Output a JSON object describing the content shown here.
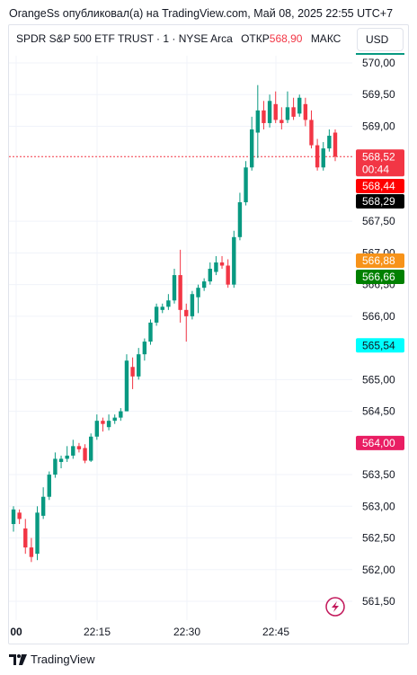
{
  "header": {
    "attribution": "OrangeSs опубликовал(а) на TradingView.com, Май 08, 2025 22:55 UTC+7"
  },
  "legend": {
    "symbol_text": "SPDR S&P 500 ETF TRUST · 1 · NYSE Arca",
    "open_label": "ОТКР",
    "open_value": "568,90",
    "high_label": "МАКС"
  },
  "currency_button": {
    "label": "USD"
  },
  "footer": {
    "brand": "TradingView"
  },
  "colors": {
    "up": "#089981",
    "down": "#f23645",
    "grid": "#f0f3fa",
    "last_price_line": "#f23645"
  },
  "price_labels": [
    {
      "id": "last-price",
      "value": "568,52",
      "sub": "00:44",
      "color": "#f23645",
      "text_color": "#ffffff"
    },
    {
      "id": "bid-price",
      "value": "568,44",
      "color": "#ff0000",
      "text_color": "#ffffff"
    },
    {
      "id": "ask-price",
      "value": "568,29",
      "color": "#000000",
      "text_color": "#ffffff"
    },
    {
      "id": "orange-level",
      "value": "566,88",
      "color": "#f7931a",
      "text_color": "#ffffff"
    },
    {
      "id": "green-level",
      "value": "566,66",
      "color": "#008000",
      "text_color": "#ffffff"
    },
    {
      "id": "cyan-level",
      "value": "565,54",
      "color": "#00ffff",
      "text_color": "#131722"
    },
    {
      "id": "pink-level",
      "value": "564,00",
      "color": "#e91e63",
      "text_color": "#ffffff"
    }
  ],
  "chart_data": {
    "type": "candlestick",
    "ylim": [
      561.3,
      570.15
    ],
    "y_ticks": [
      "570,00",
      "569,50",
      "569,00",
      "567,50",
      "567,00",
      "566,50",
      "566,00",
      "565,00",
      "564,50",
      "563,50",
      "563,00",
      "562,50",
      "562,00",
      "561,50"
    ],
    "x_ticks": [
      "00",
      "22:15",
      "22:30",
      "22:45"
    ],
    "last_price": 568.52,
    "candles": [
      {
        "o": 562.72,
        "h": 563.0,
        "l": 562.6,
        "c": 562.95
      },
      {
        "o": 562.9,
        "h": 562.95,
        "l": 562.72,
        "c": 562.8
      },
      {
        "o": 562.65,
        "h": 562.8,
        "l": 562.25,
        "c": 562.35
      },
      {
        "o": 562.35,
        "h": 562.5,
        "l": 562.12,
        "c": 562.2
      },
      {
        "o": 562.25,
        "h": 563.0,
        "l": 562.15,
        "c": 562.9
      },
      {
        "o": 562.85,
        "h": 563.3,
        "l": 562.8,
        "c": 563.15
      },
      {
        "o": 563.15,
        "h": 563.55,
        "l": 563.1,
        "c": 563.5
      },
      {
        "o": 563.5,
        "h": 563.85,
        "l": 563.45,
        "c": 563.75
      },
      {
        "o": 563.7,
        "h": 563.8,
        "l": 563.6,
        "c": 563.75
      },
      {
        "o": 563.75,
        "h": 563.95,
        "l": 563.7,
        "c": 563.8
      },
      {
        "o": 563.8,
        "h": 564.05,
        "l": 563.75,
        "c": 563.95
      },
      {
        "o": 563.95,
        "h": 564.0,
        "l": 563.85,
        "c": 563.9
      },
      {
        "o": 563.92,
        "h": 563.98,
        "l": 563.68,
        "c": 563.72
      },
      {
        "o": 563.72,
        "h": 564.15,
        "l": 563.7,
        "c": 564.1
      },
      {
        "o": 564.1,
        "h": 564.45,
        "l": 564.05,
        "c": 564.35
      },
      {
        "o": 564.35,
        "h": 564.4,
        "l": 564.18,
        "c": 564.3
      },
      {
        "o": 564.25,
        "h": 564.45,
        "l": 564.2,
        "c": 564.35
      },
      {
        "o": 564.35,
        "h": 564.45,
        "l": 564.3,
        "c": 564.4
      },
      {
        "o": 564.4,
        "h": 564.55,
        "l": 564.35,
        "c": 564.5
      },
      {
        "o": 564.5,
        "h": 565.4,
        "l": 564.5,
        "c": 565.3
      },
      {
        "o": 565.2,
        "h": 565.35,
        "l": 564.85,
        "c": 565.05
      },
      {
        "o": 565.05,
        "h": 565.5,
        "l": 565.0,
        "c": 565.4
      },
      {
        "o": 565.4,
        "h": 565.65,
        "l": 565.3,
        "c": 565.6
      },
      {
        "o": 565.6,
        "h": 565.95,
        "l": 565.55,
        "c": 565.9
      },
      {
        "o": 565.9,
        "h": 566.2,
        "l": 565.85,
        "c": 566.15
      },
      {
        "o": 566.1,
        "h": 566.2,
        "l": 566.05,
        "c": 566.15
      },
      {
        "o": 566.15,
        "h": 566.35,
        "l": 566.1,
        "c": 566.25
      },
      {
        "o": 566.25,
        "h": 566.75,
        "l": 566.2,
        "c": 566.65
      },
      {
        "o": 566.65,
        "h": 567.05,
        "l": 565.9,
        "c": 566.1
      },
      {
        "o": 566.1,
        "h": 566.2,
        "l": 565.6,
        "c": 566.0
      },
      {
        "o": 566.0,
        "h": 566.4,
        "l": 565.95,
        "c": 566.35
      },
      {
        "o": 566.3,
        "h": 566.5,
        "l": 566.05,
        "c": 566.45
      },
      {
        "o": 566.45,
        "h": 566.6,
        "l": 566.4,
        "c": 566.55
      },
      {
        "o": 566.55,
        "h": 566.85,
        "l": 566.5,
        "c": 566.75
      },
      {
        "o": 566.7,
        "h": 566.95,
        "l": 566.65,
        "c": 566.85
      },
      {
        "o": 566.85,
        "h": 566.95,
        "l": 566.75,
        "c": 566.8
      },
      {
        "o": 566.8,
        "h": 566.9,
        "l": 566.45,
        "c": 566.5
      },
      {
        "o": 566.5,
        "h": 567.35,
        "l": 566.45,
        "c": 567.25
      },
      {
        "o": 567.25,
        "h": 567.95,
        "l": 567.2,
        "c": 567.8
      },
      {
        "o": 567.8,
        "h": 568.45,
        "l": 567.75,
        "c": 568.35
      },
      {
        "o": 568.35,
        "h": 569.15,
        "l": 568.3,
        "c": 568.95
      },
      {
        "o": 568.9,
        "h": 569.65,
        "l": 568.5,
        "c": 569.25
      },
      {
        "o": 569.25,
        "h": 569.4,
        "l": 568.95,
        "c": 569.05
      },
      {
        "o": 569.05,
        "h": 569.5,
        "l": 568.98,
        "c": 569.4
      },
      {
        "o": 569.35,
        "h": 569.55,
        "l": 569.05,
        "c": 569.1
      },
      {
        "o": 569.1,
        "h": 569.3,
        "l": 568.95,
        "c": 569.05
      },
      {
        "o": 569.1,
        "h": 569.55,
        "l": 569.05,
        "c": 569.3
      },
      {
        "o": 569.3,
        "h": 569.45,
        "l": 569.1,
        "c": 569.15
      },
      {
        "o": 569.2,
        "h": 569.5,
        "l": 569.15,
        "c": 569.45
      },
      {
        "o": 569.35,
        "h": 569.45,
        "l": 569.0,
        "c": 569.1
      },
      {
        "o": 569.1,
        "h": 569.25,
        "l": 568.65,
        "c": 568.7
      },
      {
        "o": 568.7,
        "h": 568.8,
        "l": 568.3,
        "c": 568.35
      },
      {
        "o": 568.35,
        "h": 568.75,
        "l": 568.3,
        "c": 568.65
      },
      {
        "o": 568.65,
        "h": 568.95,
        "l": 568.6,
        "c": 568.85
      },
      {
        "o": 568.9,
        "h": 568.95,
        "l": 568.45,
        "c": 568.52
      }
    ]
  }
}
